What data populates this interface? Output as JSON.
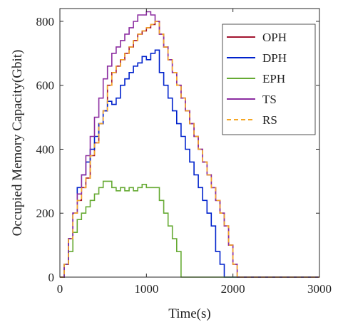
{
  "chart_data": {
    "type": "line",
    "xlabel": "Time(s)",
    "ylabel": "Occupied Memory Capacity(Gbit)",
    "xlim": [
      0,
      3000
    ],
    "ylim": [
      0,
      840
    ],
    "xticks": [
      0,
      1000,
      2000,
      3000
    ],
    "yticks": [
      0,
      200,
      400,
      600,
      800
    ],
    "grid": false,
    "legend_position": "top-right",
    "series": [
      {
        "name": "OPH",
        "color": "#a2142f",
        "dash": "solid",
        "x": [
          0,
          50,
          100,
          150,
          200,
          250,
          300,
          350,
          400,
          450,
          500,
          550,
          600,
          650,
          700,
          750,
          800,
          850,
          900,
          950,
          1000,
          1050,
          1100,
          1150,
          1200,
          1250,
          1300,
          1350,
          1400,
          1450,
          1500,
          1550,
          1600,
          1650,
          1700,
          1750,
          1800,
          1850,
          1900,
          1950,
          2000,
          2050,
          3000
        ],
        "y": [
          0,
          40,
          120,
          200,
          240,
          280,
          310,
          380,
          420,
          480,
          520,
          600,
          640,
          660,
          680,
          700,
          720,
          740,
          760,
          770,
          780,
          790,
          800,
          760,
          720,
          680,
          640,
          600,
          560,
          520,
          480,
          440,
          400,
          360,
          320,
          280,
          240,
          200,
          160,
          100,
          40,
          0,
          0
        ]
      },
      {
        "name": "DPH",
        "color": "#0022cc",
        "dash": "solid",
        "x": [
          0,
          50,
          100,
          150,
          200,
          250,
          300,
          350,
          400,
          450,
          500,
          550,
          600,
          650,
          700,
          750,
          800,
          850,
          900,
          950,
          1000,
          1050,
          1100,
          1150,
          1200,
          1250,
          1300,
          1350,
          1400,
          1450,
          1500,
          1550,
          1600,
          1650,
          1700,
          1750,
          1800,
          1850,
          1900,
          3000
        ],
        "y": [
          0,
          40,
          120,
          200,
          280,
          320,
          360,
          400,
          440,
          480,
          520,
          550,
          540,
          560,
          600,
          620,
          640,
          660,
          670,
          690,
          680,
          700,
          710,
          640,
          600,
          560,
          520,
          480,
          440,
          400,
          360,
          320,
          280,
          240,
          200,
          160,
          80,
          40,
          0,
          0
        ]
      },
      {
        "name": "EPH",
        "color": "#66aa33",
        "dash": "solid",
        "x": [
          0,
          50,
          100,
          150,
          200,
          250,
          300,
          350,
          400,
          450,
          500,
          550,
          600,
          650,
          700,
          750,
          800,
          850,
          900,
          950,
          1000,
          1050,
          1100,
          1150,
          1200,
          1250,
          1300,
          1350,
          1400,
          3000
        ],
        "y": [
          0,
          40,
          80,
          140,
          180,
          200,
          220,
          240,
          260,
          280,
          300,
          300,
          280,
          270,
          280,
          270,
          280,
          270,
          280,
          290,
          280,
          280,
          280,
          240,
          200,
          160,
          120,
          80,
          0,
          0
        ]
      },
      {
        "name": "TS",
        "color": "#8b2ca0",
        "dash": "solid",
        "x": [
          0,
          50,
          100,
          150,
          200,
          250,
          300,
          350,
          400,
          450,
          500,
          550,
          600,
          650,
          700,
          750,
          800,
          850,
          900,
          950,
          1000,
          1050,
          1100,
          1150,
          1200,
          1250,
          1300,
          1350,
          1400,
          1450,
          1500,
          1550,
          1600,
          1650,
          1700,
          1750,
          1800,
          1850,
          1900,
          1950,
          2000,
          2050,
          3000
        ],
        "y": [
          0,
          40,
          120,
          200,
          260,
          320,
          380,
          440,
          500,
          560,
          620,
          660,
          700,
          720,
          740,
          760,
          780,
          800,
          820,
          820,
          830,
          820,
          800,
          760,
          720,
          680,
          640,
          600,
          560,
          520,
          480,
          440,
          400,
          360,
          320,
          280,
          240,
          200,
          160,
          100,
          40,
          0,
          0
        ]
      },
      {
        "name": "RS",
        "color": "#f5a623",
        "dash": "dashed",
        "x": [
          0,
          50,
          100,
          150,
          200,
          250,
          300,
          350,
          400,
          450,
          500,
          550,
          600,
          650,
          700,
          750,
          800,
          850,
          900,
          950,
          1000,
          1050,
          1100,
          1150,
          1200,
          1250,
          1300,
          1350,
          1400,
          1450,
          1500,
          1550,
          1600,
          1650,
          1700,
          1750,
          1800,
          1850,
          1900,
          1950,
          2000,
          2050,
          3000
        ],
        "y": [
          0,
          40,
          120,
          200,
          240,
          280,
          310,
          380,
          420,
          480,
          520,
          600,
          640,
          660,
          680,
          700,
          720,
          740,
          760,
          770,
          780,
          790,
          800,
          760,
          720,
          680,
          640,
          600,
          560,
          520,
          480,
          440,
          400,
          360,
          320,
          280,
          240,
          200,
          160,
          100,
          40,
          0,
          0
        ]
      }
    ]
  }
}
